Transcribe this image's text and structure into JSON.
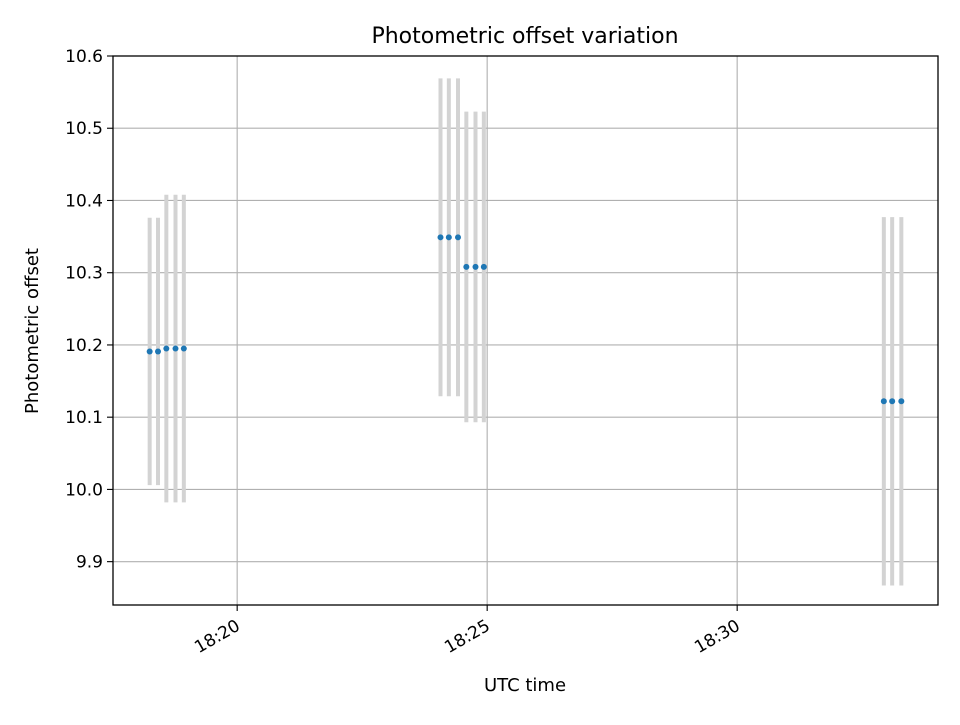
{
  "chart_data": {
    "type": "scatter",
    "title": "Photometric offset variation",
    "xlabel": "UTC time",
    "ylabel": "Photometric offset",
    "xlim": [
      "18:17:31",
      "18:34:01"
    ],
    "ylim": [
      9.84,
      10.6
    ],
    "x_ticks": [
      "18:20",
      "18:25",
      "18:30"
    ],
    "y_ticks": [
      "9.9",
      "10.0",
      "10.1",
      "10.2",
      "10.3",
      "10.4",
      "10.5",
      "10.6"
    ],
    "grid": true,
    "series": [
      {
        "marker_color": "#1f77b4",
        "errorbar_color": "#d3d3d3",
        "points": [
          {
            "time": "18:18:15",
            "y": 10.191,
            "yerr": 0.185
          },
          {
            "time": "18:18:25",
            "y": 10.191,
            "yerr": 0.185
          },
          {
            "time": "18:18:35",
            "y": 10.195,
            "yerr": 0.213
          },
          {
            "time": "18:18:46",
            "y": 10.195,
            "yerr": 0.213
          },
          {
            "time": "18:18:56",
            "y": 10.195,
            "yerr": 0.213
          },
          {
            "time": "18:24:04",
            "y": 10.349,
            "yerr": 0.22
          },
          {
            "time": "18:24:14",
            "y": 10.349,
            "yerr": 0.22
          },
          {
            "time": "18:24:25",
            "y": 10.349,
            "yerr": 0.22
          },
          {
            "time": "18:24:35",
            "y": 10.308,
            "yerr": 0.215
          },
          {
            "time": "18:24:46",
            "y": 10.308,
            "yerr": 0.215
          },
          {
            "time": "18:24:56",
            "y": 10.308,
            "yerr": 0.215
          },
          {
            "time": "18:32:56",
            "y": 10.122,
            "yerr": 0.255
          },
          {
            "time": "18:33:06",
            "y": 10.122,
            "yerr": 0.255
          },
          {
            "time": "18:33:17",
            "y": 10.122,
            "yerr": 0.255
          }
        ]
      }
    ]
  }
}
